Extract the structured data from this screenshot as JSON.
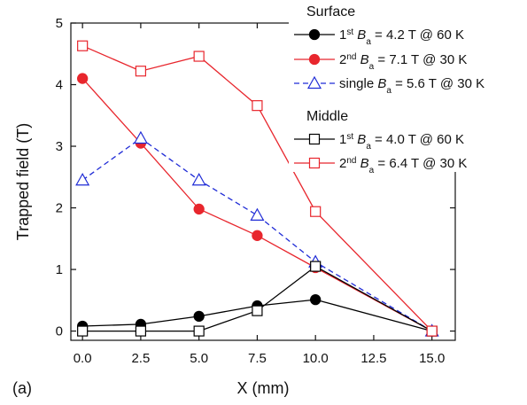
{
  "chart_data": {
    "type": "line",
    "panel_label": "(a)",
    "xlabel": "X (mm)",
    "ylabel": "Trapped field (T)",
    "xlim": [
      -0.5,
      16
    ],
    "ylim": [
      -0.15,
      5
    ],
    "xticks": [
      "0.0",
      "2.5",
      "5.0",
      "7.5",
      "10.0",
      "12.5",
      "15.0"
    ],
    "xtick_values": [
      0,
      2.5,
      5,
      7.5,
      10,
      12.5,
      15
    ],
    "yticks": [
      "0",
      "1",
      "2",
      "3",
      "4",
      "5"
    ],
    "ytick_values": [
      0,
      1,
      2,
      3,
      4,
      5
    ],
    "grid": false,
    "legend_position": "top-right",
    "legend_groups": [
      {
        "label": "Surface",
        "series_indices": [
          0,
          1,
          2
        ]
      },
      {
        "label": "Middle",
        "series_indices": [
          3,
          4
        ]
      }
    ],
    "series": [
      {
        "legend": {
          "prefix": "1",
          "sup": "st",
          "field": "B",
          "sub": "a",
          "rest": " = 4.2 T @ 60 K"
        },
        "color": "#000000",
        "marker": "circle",
        "filled": true,
        "dash": "solid",
        "points": [
          [
            0,
            0.08
          ],
          [
            2.5,
            0.11
          ],
          [
            5,
            0.24
          ],
          [
            7.5,
            0.41
          ],
          [
            10,
            0.51
          ],
          [
            15,
            0.0
          ]
        ]
      },
      {
        "legend": {
          "prefix": "2",
          "sup": "nd",
          "field": "B",
          "sub": "a",
          "rest": " = 7.1 T @ 30 K"
        },
        "color": "#e8262d",
        "marker": "circle",
        "filled": true,
        "dash": "solid",
        "points": [
          [
            0,
            4.1
          ],
          [
            2.5,
            3.05
          ],
          [
            5,
            1.98
          ],
          [
            7.5,
            1.55
          ],
          [
            10,
            1.03
          ],
          [
            15,
            0.0
          ]
        ]
      },
      {
        "legend": {
          "prefix": "single ",
          "sup": "",
          "field": "B",
          "sub": "a",
          "rest": " = 5.6 T @ 30 K"
        },
        "color": "#1f2bd6",
        "marker": "triangle",
        "filled": false,
        "dash": "dashed",
        "points": [
          [
            0,
            2.45
          ],
          [
            2.5,
            3.13
          ],
          [
            5,
            2.45
          ],
          [
            7.5,
            1.88
          ],
          [
            10,
            1.12
          ],
          [
            15,
            0.0
          ]
        ]
      },
      {
        "legend": {
          "prefix": "1",
          "sup": "st",
          "field": "B",
          "sub": "a",
          "rest": " = 4.0 T @ 60 K"
        },
        "color": "#000000",
        "marker": "square",
        "filled": false,
        "dash": "solid",
        "points": [
          [
            0,
            0.0
          ],
          [
            2.5,
            0.0
          ],
          [
            5,
            0.0
          ],
          [
            7.5,
            0.33
          ],
          [
            10,
            1.05
          ],
          [
            15,
            0.0
          ]
        ]
      },
      {
        "legend": {
          "prefix": "2",
          "sup": "nd",
          "field": "B",
          "sub": "a",
          "rest": " = 6.4 T @ 30 K"
        },
        "color": "#e8262d",
        "marker": "square",
        "filled": false,
        "dash": "solid",
        "points": [
          [
            0,
            4.63
          ],
          [
            2.5,
            4.22
          ],
          [
            5,
            4.46
          ],
          [
            7.5,
            3.66
          ],
          [
            10,
            1.94
          ],
          [
            15,
            0.0
          ]
        ]
      }
    ]
  }
}
